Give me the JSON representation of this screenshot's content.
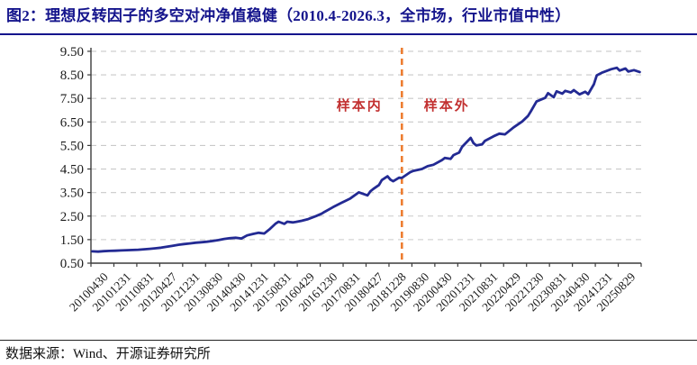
{
  "header": {
    "title": "图2：理想反转因子的多空对冲净值稳健（2010.4-2026.3，全市场，行业市值中性）"
  },
  "footer": {
    "source": "数据来源：Wind、开源证券研究所"
  },
  "colors": {
    "title": "#14148C",
    "line": "#232A93",
    "split_line": "#ED7D31",
    "annotation_text": "#C23030",
    "grid": "#C9C9C9",
    "axis": "#3B3B3B",
    "tick_text": "#1a1a1a"
  },
  "chart_data": {
    "type": "line",
    "title": "理想反转因子多空对冲净值",
    "xlabel": "",
    "ylabel": "",
    "ylim": [
      0.5,
      9.65
    ],
    "yticks": [
      9.5,
      8.5,
      7.5,
      6.5,
      5.5,
      4.5,
      3.5,
      2.5,
      1.5,
      0.5
    ],
    "grid": "horizontal-dashed",
    "legend": "none",
    "x_start": "2010-04",
    "x_end": "2026-03",
    "months_total": 192,
    "x_tick_labels": [
      "20100430",
      "20101231",
      "20110831",
      "20120427",
      "20121231",
      "20130830",
      "20140430",
      "20141231",
      "20150831",
      "20160429",
      "20161230",
      "20170831",
      "20180427",
      "20181228",
      "20190830",
      "20200430",
      "20201231",
      "20210831",
      "20220429",
      "20221230",
      "20230831",
      "20240430",
      "20241231",
      "20250829"
    ],
    "annotations": {
      "split_line_month": "2019-04",
      "in_sample_label": "样本内",
      "out_sample_label": "样本外"
    },
    "series": [
      {
        "name": "理想反转因子多空对冲净值",
        "points": [
          [
            "2010-04",
            1.0
          ],
          [
            "2010-06",
            0.99
          ],
          [
            "2010-08",
            1.01
          ],
          [
            "2010-10",
            1.02
          ],
          [
            "2010-12",
            1.03
          ],
          [
            "2011-02",
            1.04
          ],
          [
            "2011-04",
            1.05
          ],
          [
            "2011-06",
            1.06
          ],
          [
            "2011-08",
            1.07
          ],
          [
            "2011-10",
            1.09
          ],
          [
            "2011-12",
            1.11
          ],
          [
            "2012-02",
            1.13
          ],
          [
            "2012-04",
            1.16
          ],
          [
            "2012-06",
            1.2
          ],
          [
            "2012-08",
            1.24
          ],
          [
            "2012-10",
            1.28
          ],
          [
            "2012-12",
            1.31
          ],
          [
            "2013-02",
            1.34
          ],
          [
            "2013-04",
            1.37
          ],
          [
            "2013-06",
            1.39
          ],
          [
            "2013-08",
            1.41
          ],
          [
            "2013-10",
            1.44
          ],
          [
            "2013-12",
            1.48
          ],
          [
            "2014-02",
            1.53
          ],
          [
            "2014-04",
            1.56
          ],
          [
            "2014-06",
            1.58
          ],
          [
            "2014-08",
            1.55
          ],
          [
            "2014-10",
            1.68
          ],
          [
            "2014-12",
            1.74
          ],
          [
            "2015-02",
            1.79
          ],
          [
            "2015-04",
            1.76
          ],
          [
            "2015-06",
            1.96
          ],
          [
            "2015-08",
            2.19
          ],
          [
            "2015-09",
            2.26
          ],
          [
            "2015-11",
            2.17
          ],
          [
            "2015-12",
            2.26
          ],
          [
            "2016-02",
            2.23
          ],
          [
            "2016-03",
            2.25
          ],
          [
            "2016-05",
            2.3
          ],
          [
            "2016-07",
            2.36
          ],
          [
            "2016-10",
            2.5
          ],
          [
            "2016-12",
            2.6
          ],
          [
            "2017-01",
            2.68
          ],
          [
            "2017-04",
            2.88
          ],
          [
            "2017-07",
            3.07
          ],
          [
            "2017-10",
            3.25
          ],
          [
            "2018-01",
            3.51
          ],
          [
            "2018-04",
            3.38
          ],
          [
            "2018-05",
            3.55
          ],
          [
            "2018-06",
            3.65
          ],
          [
            "2018-08",
            3.82
          ],
          [
            "2018-09",
            4.03
          ],
          [
            "2018-11",
            4.19
          ],
          [
            "2018-12",
            4.05
          ],
          [
            "2019-01",
            3.98
          ],
          [
            "2019-03",
            4.13
          ],
          [
            "2019-04",
            4.12
          ],
          [
            "2019-07",
            4.37
          ],
          [
            "2019-08",
            4.42
          ],
          [
            "2019-11",
            4.5
          ],
          [
            "2020-01",
            4.62
          ],
          [
            "2020-03",
            4.68
          ],
          [
            "2020-06",
            4.88
          ],
          [
            "2020-07",
            4.97
          ],
          [
            "2020-09",
            4.93
          ],
          [
            "2020-10",
            5.09
          ],
          [
            "2020-12",
            5.2
          ],
          [
            "2021-01",
            5.44
          ],
          [
            "2021-04",
            5.82
          ],
          [
            "2021-05",
            5.6
          ],
          [
            "2021-06",
            5.5
          ],
          [
            "2021-08",
            5.55
          ],
          [
            "2021-09",
            5.7
          ],
          [
            "2021-12",
            5.89
          ],
          [
            "2022-02",
            6.0
          ],
          [
            "2022-04",
            5.97
          ],
          [
            "2022-07",
            6.27
          ],
          [
            "2022-10",
            6.52
          ],
          [
            "2022-12",
            6.75
          ],
          [
            "2023-01",
            6.95
          ],
          [
            "2023-03",
            7.37
          ],
          [
            "2023-06",
            7.52
          ],
          [
            "2023-07",
            7.72
          ],
          [
            "2023-09",
            7.55
          ],
          [
            "2023-10",
            7.8
          ],
          [
            "2023-12",
            7.7
          ],
          [
            "2024-01",
            7.82
          ],
          [
            "2024-03",
            7.75
          ],
          [
            "2024-04",
            7.85
          ],
          [
            "2024-06",
            7.67
          ],
          [
            "2024-08",
            7.78
          ],
          [
            "2024-09",
            7.68
          ],
          [
            "2024-11",
            8.1
          ],
          [
            "2024-12",
            8.48
          ],
          [
            "2025-02",
            8.6
          ],
          [
            "2025-05",
            8.74
          ],
          [
            "2025-07",
            8.8
          ],
          [
            "2025-08",
            8.68
          ],
          [
            "2025-10",
            8.77
          ],
          [
            "2025-11",
            8.64
          ],
          [
            "2026-01",
            8.7
          ],
          [
            "2026-03",
            8.62
          ]
        ]
      }
    ]
  }
}
